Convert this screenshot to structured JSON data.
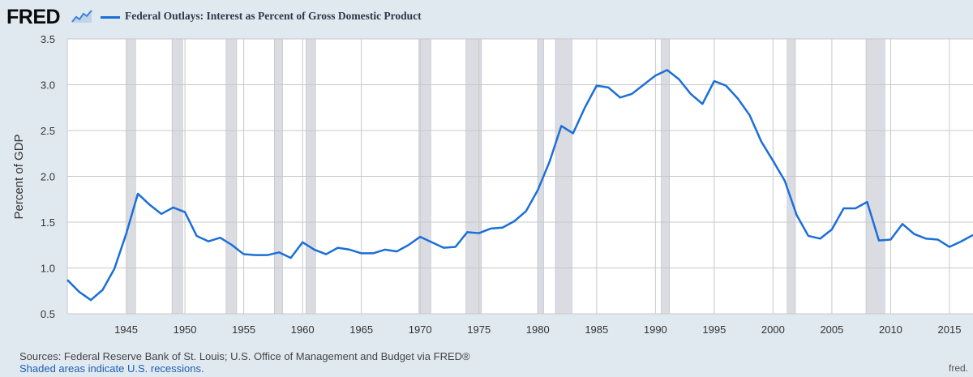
{
  "brand": {
    "logo_text": "FRED",
    "logo_icon": "fred-chart-icon"
  },
  "chart_data": {
    "type": "line",
    "series": [
      {
        "name": "Federal Outlays: Interest as Percent of Gross Domestic Product",
        "color": "#1b6fd8",
        "x": [
          1940,
          1941,
          1942,
          1943,
          1944,
          1945,
          1946,
          1947,
          1948,
          1949,
          1950,
          1951,
          1952,
          1953,
          1954,
          1955,
          1956,
          1957,
          1958,
          1959,
          1960,
          1961,
          1962,
          1963,
          1964,
          1965,
          1966,
          1967,
          1968,
          1969,
          1970,
          1971,
          1972,
          1973,
          1974,
          1975,
          1976,
          1977,
          1978,
          1979,
          1980,
          1981,
          1982,
          1983,
          1984,
          1985,
          1986,
          1987,
          1988,
          1989,
          1990,
          1991,
          1992,
          1993,
          1994,
          1995,
          1996,
          1997,
          1998,
          1999,
          2000,
          2001,
          2002,
          2003,
          2004,
          2005,
          2006,
          2007,
          2008,
          2009,
          2010,
          2011,
          2012,
          2013,
          2014,
          2015,
          2016,
          2017
        ],
        "values": [
          0.87,
          0.74,
          0.65,
          0.76,
          0.99,
          1.37,
          1.81,
          1.69,
          1.59,
          1.66,
          1.61,
          1.35,
          1.29,
          1.33,
          1.25,
          1.15,
          1.14,
          1.14,
          1.17,
          1.11,
          1.28,
          1.2,
          1.15,
          1.22,
          1.2,
          1.16,
          1.16,
          1.2,
          1.18,
          1.25,
          1.34,
          1.28,
          1.22,
          1.23,
          1.39,
          1.38,
          1.43,
          1.44,
          1.51,
          1.62,
          1.85,
          2.16,
          2.55,
          2.47,
          2.75,
          2.99,
          2.97,
          2.86,
          2.9,
          3.0,
          3.1,
          3.16,
          3.06,
          2.9,
          2.79,
          3.04,
          2.99,
          2.85,
          2.67,
          2.38,
          2.17,
          1.95,
          1.58,
          1.35,
          1.32,
          1.42,
          1.65,
          1.65,
          1.72,
          1.3,
          1.31,
          1.48,
          1.37,
          1.32,
          1.31,
          1.23,
          1.29,
          1.36
        ]
      }
    ],
    "ylabel": "Percent of GDP",
    "ylim": [
      0.5,
      3.5
    ],
    "y_ticks": [
      "0.5",
      "1.0",
      "1.5",
      "2.0",
      "2.5",
      "3.0",
      "3.5"
    ],
    "xlim": [
      1940,
      2017
    ],
    "x_ticks": [
      "1945",
      "1950",
      "1955",
      "1960",
      "1965",
      "1970",
      "1975",
      "1980",
      "1985",
      "1990",
      "1995",
      "2000",
      "2005",
      "2010",
      "2015"
    ],
    "recessions": [
      [
        1945.1,
        1945.8
      ],
      [
        1948.9,
        1949.8
      ],
      [
        1953.5,
        1954.4
      ],
      [
        1957.6,
        1958.3
      ],
      [
        1960.3,
        1961.1
      ],
      [
        1969.9,
        1970.9
      ],
      [
        1973.9,
        1975.2
      ],
      [
        1980.0,
        1980.5
      ],
      [
        1981.5,
        1982.9
      ],
      [
        1990.5,
        1991.2
      ],
      [
        2001.2,
        2001.9
      ],
      [
        2007.9,
        2009.5
      ]
    ],
    "grid": true,
    "legend_position": "top-left",
    "colors": {
      "line": "#1b6fd8",
      "recession": "#dadce2",
      "plot_bg": "#ffffff",
      "page_bg": "#e1e9f0",
      "grid": "#c8c8c8"
    }
  },
  "footer": {
    "sources": "Sources: Federal Reserve Bank of St. Louis; U.S. Office of Management and Budget via FRED®",
    "recession_note": "Shaded areas indicate U.S. recessions.",
    "domain": "fred."
  }
}
